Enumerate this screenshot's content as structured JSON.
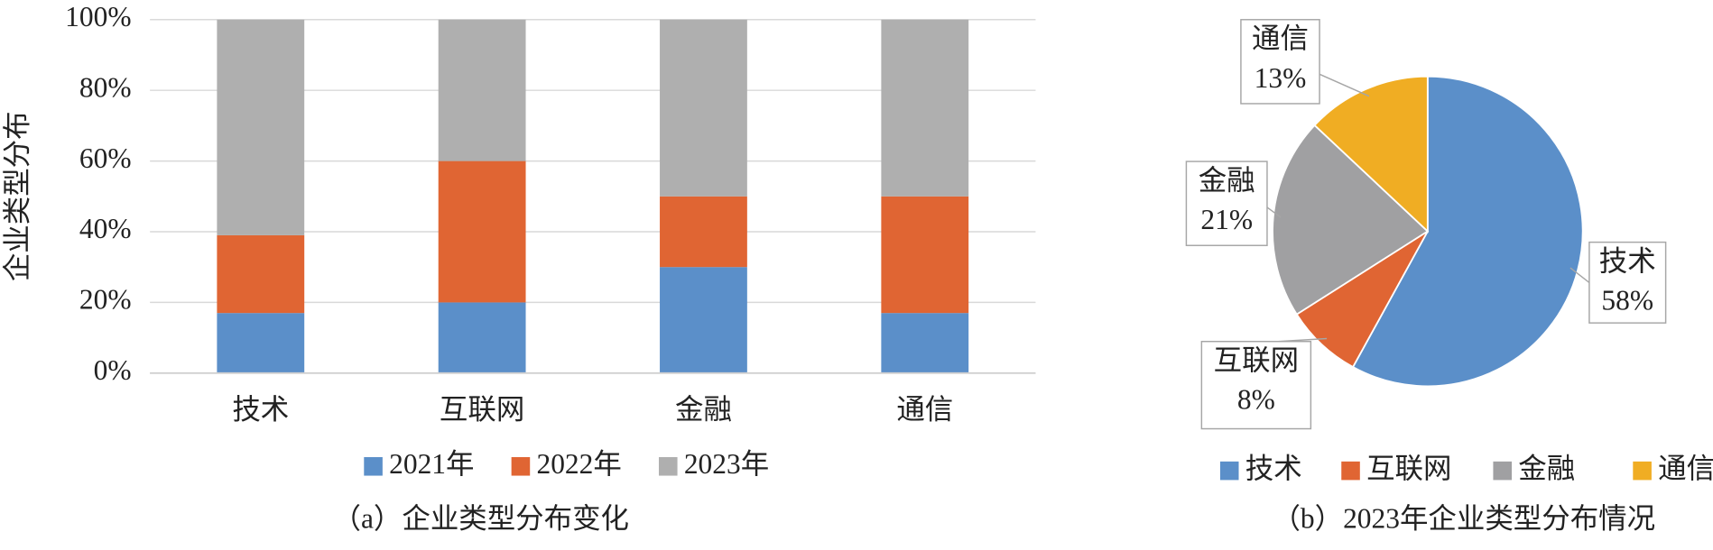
{
  "chart_data": [
    {
      "type": "stacked-bar",
      "y_label": "企业类型分布",
      "caption": "（a）企业类型分布变化",
      "categories": [
        "技术",
        "互联网",
        "金融",
        "通信"
      ],
      "series": [
        {
          "name": "2021年",
          "color": "#5b8fc9",
          "values": [
            17,
            20,
            30,
            17
          ]
        },
        {
          "name": "2022年",
          "color": "#e06533",
          "values": [
            22,
            40,
            20,
            33
          ]
        },
        {
          "name": "2023年",
          "color": "#afafaf",
          "values": [
            61,
            40,
            50,
            50
          ]
        }
      ],
      "ylim": [
        0,
        100
      ],
      "yticks": [
        {
          "value": 0,
          "label": "0%"
        },
        {
          "value": 20,
          "label": "20%"
        },
        {
          "value": 40,
          "label": "40%"
        },
        {
          "value": 60,
          "label": "60%"
        },
        {
          "value": 80,
          "label": "80%"
        },
        {
          "value": 100,
          "label": "100%"
        }
      ],
      "grid": true
    },
    {
      "type": "pie",
      "caption": "（b）2023年企业类型分布情况",
      "categories": [
        "技术",
        "互联网",
        "金融",
        "通信"
      ],
      "values": [
        58,
        8,
        21,
        13
      ],
      "value_labels": [
        "58%",
        "8%",
        "21%",
        "13%"
      ],
      "colors": [
        "#5b8fc9",
        "#e06533",
        "#a0a0a2",
        "#f0ad23"
      ]
    }
  ]
}
